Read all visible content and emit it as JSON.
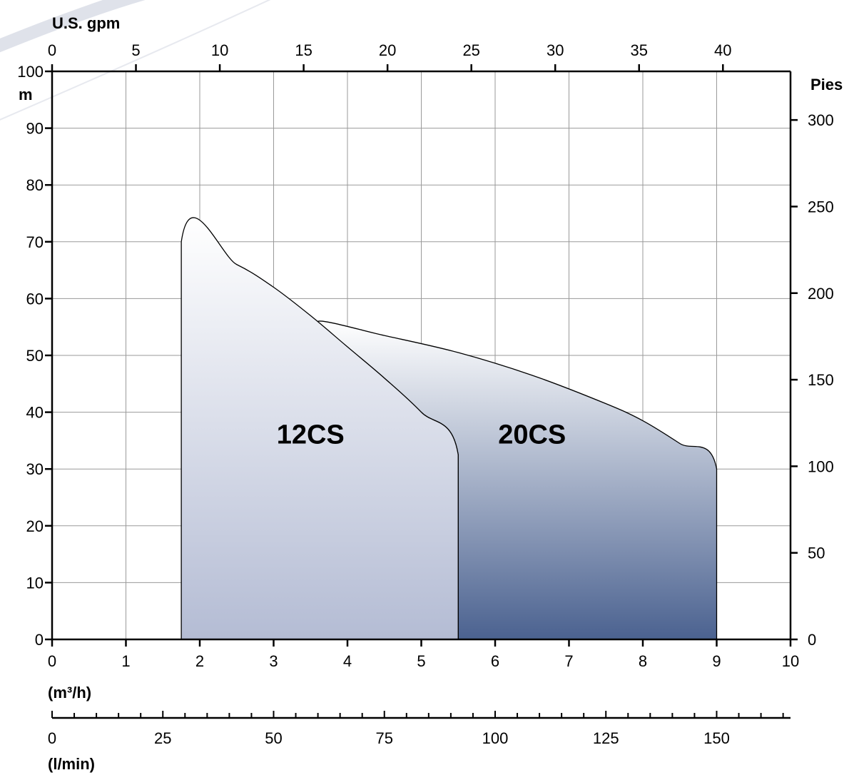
{
  "chart_data": {
    "type": "area",
    "x_axis": {
      "label": "(m³/h)",
      "range": [
        0,
        10
      ],
      "ticks": [
        0,
        1,
        2,
        3,
        4,
        5,
        6,
        7,
        8,
        9,
        10
      ]
    },
    "x_axis_top": {
      "label": "U.S. gpm",
      "ticks": [
        0,
        5,
        10,
        15,
        20,
        25,
        30,
        35,
        40
      ]
    },
    "x_axis_bottom_secondary": {
      "label": "(l/min)",
      "ticks": [
        0,
        25,
        50,
        75,
        100,
        125,
        150
      ],
      "range": [
        0,
        166.67
      ]
    },
    "y_axis": {
      "label": "m",
      "range": [
        0,
        100
      ],
      "ticks": [
        0,
        10,
        20,
        30,
        40,
        50,
        60,
        70,
        80,
        90,
        100
      ]
    },
    "y_axis_right": {
      "label": "Pies",
      "ticks": [
        0,
        50,
        100,
        150,
        200,
        250,
        300
      ]
    },
    "grid": true,
    "series": [
      {
        "name": "12CS",
        "label_at": [
          3.5,
          34.5
        ],
        "points": [
          [
            1.75,
            0
          ],
          [
            1.75,
            70
          ],
          [
            2.5,
            66
          ],
          [
            3.0,
            62
          ],
          [
            3.5,
            57
          ],
          [
            4.0,
            51.5
          ],
          [
            4.5,
            46
          ],
          [
            5.0,
            40
          ],
          [
            5.5,
            32.5
          ],
          [
            5.5,
            0
          ]
        ]
      },
      {
        "name": "20CS",
        "label_at": [
          6.5,
          34.5
        ],
        "points": [
          [
            5.5,
            0
          ],
          [
            5.5,
            32.5
          ],
          [
            5.0,
            40
          ],
          [
            4.5,
            46
          ],
          [
            4.0,
            51.5
          ],
          [
            3.6,
            56
          ],
          [
            4.5,
            53.5
          ],
          [
            5.5,
            50.5
          ],
          [
            6.5,
            46.5
          ],
          [
            7.5,
            41.5
          ],
          [
            8.0,
            38.5
          ],
          [
            8.5,
            34.5
          ],
          [
            9.0,
            30
          ],
          [
            9.0,
            0
          ]
        ]
      }
    ]
  }
}
